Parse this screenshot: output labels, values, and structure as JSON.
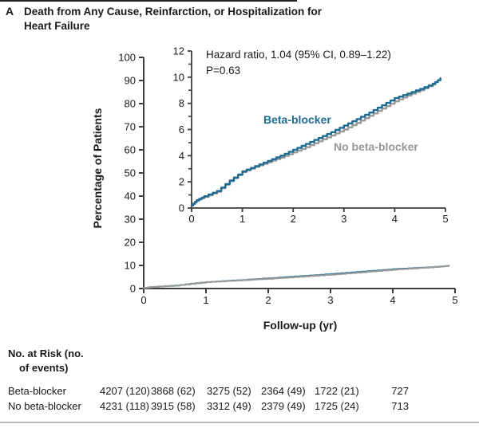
{
  "figure": {
    "panel_label": "A",
    "title_line1": "Death from Any Cause, Reinfarction, or Hospitalization for",
    "title_line2": "Heart Failure"
  },
  "annotation": {
    "hazard_line1": "Hazard ratio, 1.04 (95% CI, 0.89–1.22)",
    "hazard_line2": "P=0.63"
  },
  "series_labels": {
    "beta_blocker": "Beta-blocker",
    "no_beta_blocker": "No beta-blocker"
  },
  "axes": {
    "y_main_label": "Percentage of Patients",
    "x_main_label": "Follow-up (yr)"
  },
  "colors": {
    "beta_blocker": "#1b6b93",
    "no_beta_blocker": "#9a9a9a",
    "no_beta_label": "#969696",
    "axis": "#3d3d3d",
    "text": "#1a1a1a"
  },
  "chart_data": [
    {
      "type": "line",
      "title": "Main plot: Percentage of patients vs follow-up",
      "xlabel": "Follow-up (yr)",
      "ylabel": "Percentage of Patients",
      "xlim": [
        0,
        5
      ],
      "ylim": [
        0,
        100
      ],
      "xticks": [
        0,
        1,
        2,
        3,
        4,
        5
      ],
      "yticks": [
        0,
        10,
        20,
        30,
        40,
        50,
        60,
        70,
        80,
        90,
        100
      ],
      "yticks_minor": [],
      "grid": false,
      "legend_position": "none",
      "x": [
        0,
        0.1,
        0.25,
        0.5,
        0.75,
        1.0,
        1.25,
        1.5,
        1.75,
        2.0,
        2.25,
        2.5,
        2.75,
        3.0,
        3.25,
        3.5,
        3.75,
        4.0,
        4.25,
        4.5,
        4.75,
        4.9
      ],
      "series": [
        {
          "name": "Beta-blocker",
          "values": [
            0.2,
            0.6,
            0.9,
            1.3,
            2.1,
            2.8,
            3.2,
            3.6,
            4.0,
            4.45,
            4.9,
            5.35,
            5.8,
            6.3,
            6.8,
            7.3,
            7.85,
            8.4,
            8.75,
            9.1,
            9.5,
            9.9
          ]
        },
        {
          "name": "No beta-blocker",
          "values": [
            0.2,
            0.55,
            0.85,
            1.25,
            2.05,
            2.75,
            3.15,
            3.5,
            3.85,
            4.25,
            4.65,
            5.1,
            5.55,
            6.0,
            6.5,
            7.05,
            7.6,
            8.15,
            8.6,
            9.0,
            9.45,
            9.95
          ]
        }
      ]
    },
    {
      "type": "line",
      "title": "Inset plot: expanded y-axis 0-12%",
      "xlabel": "",
      "ylabel": "",
      "xlim": [
        0,
        5
      ],
      "ylim": [
        0,
        12
      ],
      "xticks": [
        0,
        1,
        2,
        3,
        4,
        5
      ],
      "yticks": [
        0,
        2,
        4,
        6,
        8,
        10,
        12
      ],
      "yticks_minor": [
        1,
        3,
        5,
        7,
        9,
        11
      ],
      "grid": false,
      "legend_position": "inline-labels",
      "x": [
        0,
        0.1,
        0.25,
        0.5,
        0.75,
        1.0,
        1.25,
        1.5,
        1.75,
        2.0,
        2.25,
        2.5,
        2.75,
        3.0,
        3.25,
        3.5,
        3.75,
        4.0,
        4.25,
        4.5,
        4.75,
        4.9
      ],
      "series": [
        {
          "name": "Beta-blocker",
          "values": [
            0.2,
            0.6,
            0.9,
            1.3,
            2.1,
            2.8,
            3.2,
            3.6,
            4.0,
            4.45,
            4.9,
            5.35,
            5.8,
            6.3,
            6.8,
            7.3,
            7.85,
            8.4,
            8.75,
            9.1,
            9.5,
            9.9
          ]
        },
        {
          "name": "No beta-blocker",
          "values": [
            0.2,
            0.55,
            0.85,
            1.25,
            2.05,
            2.75,
            3.15,
            3.5,
            3.85,
            4.25,
            4.65,
            5.1,
            5.55,
            6.0,
            6.5,
            7.05,
            7.6,
            8.15,
            8.6,
            9.0,
            9.45,
            9.95
          ]
        }
      ],
      "annotations": [
        "Hazard ratio, 1.04 (95% CI, 0.89–1.22)",
        "P=0.63"
      ]
    }
  ],
  "risk_table": {
    "header_line1": "No. at Risk (no.",
    "header_line2": "of events)",
    "rows": [
      {
        "label": "Beta-blocker",
        "values": [
          "4207 (120)",
          "3868 (62)",
          "3275 (52)",
          "2364 (49)",
          "1722 (21)",
          "727"
        ]
      },
      {
        "label": "No beta-blocker",
        "values": [
          "4231 (118)",
          "3915 (58)",
          "3312 (49)",
          "2379 (49)",
          "1725 (24)",
          "713"
        ]
      }
    ]
  }
}
